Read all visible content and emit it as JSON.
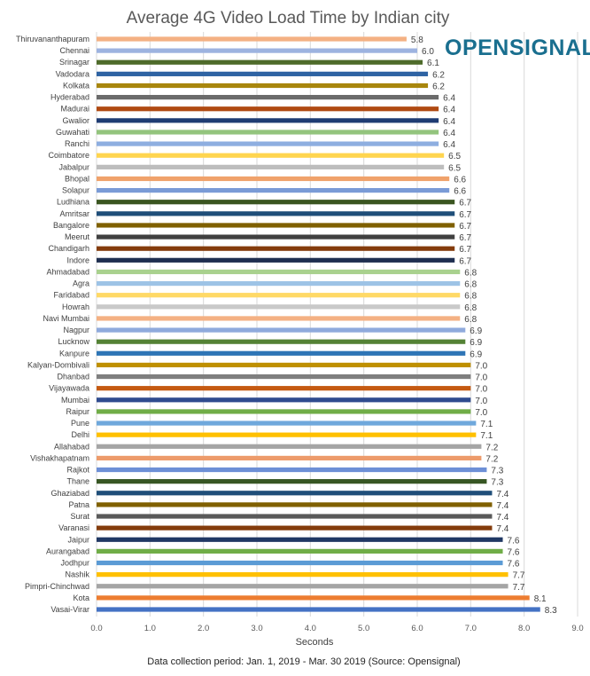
{
  "chart_data": {
    "type": "bar",
    "orientation": "horizontal",
    "title": "Average 4G Video Load Time by Indian city",
    "xlabel": "Seconds",
    "ylabel": "",
    "xlim": [
      0,
      9
    ],
    "xticks": [
      "0.0",
      "1.0",
      "2.0",
      "3.0",
      "4.0",
      "5.0",
      "6.0",
      "7.0",
      "8.0",
      "9.0"
    ],
    "grid": true,
    "footnote": "Data collection period: Jan. 1, 2019 - Mar. 30 2019 (Source: Opensignal)",
    "logo_text": "OPENSIGNAL",
    "logo_color": "#1a6f8f",
    "categories": [
      "Thiruvananthapuram",
      "Chennai",
      "Srinagar",
      "Vadodara",
      "Kolkata",
      "Hyderabad",
      "Madurai",
      "Gwalior",
      "Guwahati",
      "Ranchi",
      "Coimbatore",
      "Jabalpur",
      "Bhopal",
      "Solapur",
      "Ludhiana",
      "Amritsar",
      "Bangalore",
      "Meerut",
      "Chandigarh",
      "Indore",
      "Ahmadabad",
      "Agra",
      "Faridabad",
      "Howrah",
      "Navi Mumbai",
      "Nagpur",
      "Lucknow",
      "Kanpure",
      "Kalyan-Dombivali",
      "Dhanbad",
      "Vijayawada",
      "Mumbai",
      "Raipur",
      "Pune",
      "Delhi",
      "Allahabad",
      "Vishakhapatnam",
      "Rajkot",
      "Thane",
      "Ghaziabad",
      "Patna",
      "Surat",
      "Varanasi",
      "Jaipur",
      "Aurangabad",
      "Jodhpur",
      "Nashik",
      "Pimpri-Chinchwad",
      "Kota",
      "Vasai-Virar"
    ],
    "values": [
      5.8,
      6.0,
      6.1,
      6.2,
      6.2,
      6.4,
      6.4,
      6.4,
      6.4,
      6.4,
      6.5,
      6.5,
      6.6,
      6.6,
      6.7,
      6.7,
      6.7,
      6.7,
      6.7,
      6.7,
      6.8,
      6.8,
      6.8,
      6.8,
      6.8,
      6.9,
      6.9,
      6.9,
      7.0,
      7.0,
      7.0,
      7.0,
      7.0,
      7.1,
      7.1,
      7.2,
      7.2,
      7.3,
      7.3,
      7.4,
      7.4,
      7.4,
      7.4,
      7.6,
      7.6,
      7.6,
      7.7,
      7.7,
      8.1,
      8.3
    ],
    "labels": [
      "5.8",
      "6.0",
      "6.1",
      "6.2",
      "6.2",
      "6.4",
      "6.4",
      "6.4",
      "6.4",
      "6.4",
      "6.5",
      "6.5",
      "6.6",
      "6.6",
      "6.7",
      "6.7",
      "6.7",
      "6.7",
      "6.7",
      "6.7",
      "6.8",
      "6.8",
      "6.8",
      "6.8",
      "6.8",
      "6.9",
      "6.9",
      "6.9",
      "7.0",
      "7.0",
      "7.0",
      "7.0",
      "7.0",
      "7.1",
      "7.1",
      "7.2",
      "7.2",
      "7.3",
      "7.3",
      "7.4",
      "7.4",
      "7.4",
      "7.4",
      "7.6",
      "7.6",
      "7.6",
      "7.7",
      "7.7",
      "8.1",
      "8.3"
    ],
    "colors": [
      "#F4B183",
      "#9DB3E0",
      "#4E6B2A",
      "#2E63A3",
      "#A8860D",
      "#6B6B6B",
      "#B04A12",
      "#1F3C73",
      "#93C47D",
      "#8EAEE0",
      "#FFD54F",
      "#BDBDBD",
      "#F0A26B",
      "#7A9BD6",
      "#3A5520",
      "#1F4E79",
      "#7F6000",
      "#404040",
      "#843C0C",
      "#1F2F50",
      "#A9D18E",
      "#9DC3E6",
      "#FFD966",
      "#C9C9C9",
      "#F4B183",
      "#8FAADC",
      "#548235",
      "#2E75B6",
      "#BF9000",
      "#7F7F7F",
      "#C55A11",
      "#2F4B8F",
      "#70AD47",
      "#6FA8DC",
      "#FFC000",
      "#A5A5A5",
      "#ED9B6B",
      "#6D8FD6",
      "#375623",
      "#1F4E79",
      "#806000",
      "#595959",
      "#843C0C",
      "#203864",
      "#70AD47",
      "#5B9BD5",
      "#FFC000",
      "#A5A5A5",
      "#ED7D31",
      "#4472C4"
    ]
  }
}
